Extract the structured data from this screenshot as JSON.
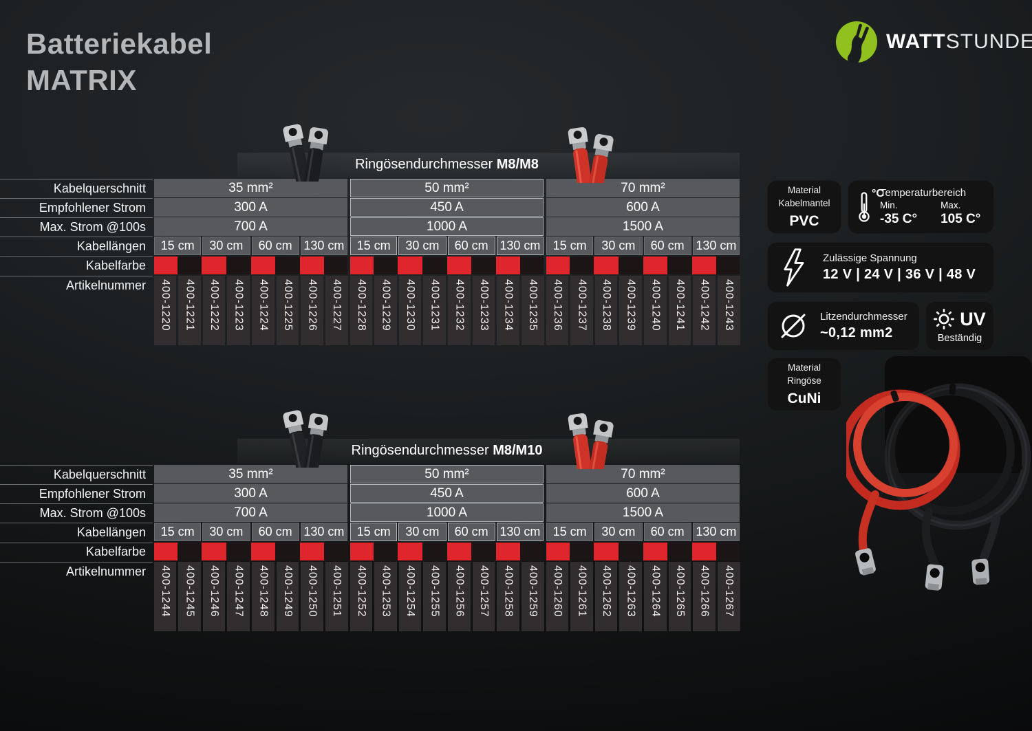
{
  "title": {
    "line1": "Batteriekabel",
    "line2": "MATRIX"
  },
  "brand": {
    "bold": "WATT",
    "light": "STUNDE",
    "logo_green": "#90c11f"
  },
  "row_labels": [
    "Kabelquerschnitt",
    "Empfohlener Strom",
    "Max. Strom @100s",
    "Kabellängen",
    "Kabelfarbe",
    "Artikelnummer"
  ],
  "swatch_cycle": [
    "#df262c",
    "#1b1516"
  ],
  "tables": [
    {
      "header_prefix": "Ringösendurchmesser ",
      "header_bold": "M8/M8",
      "groups": [
        {
          "cross_section": "35 mm²",
          "recommended_current": "300 A",
          "max_current": "700 A",
          "lengths": [
            "15 cm",
            "30 cm",
            "60 cm",
            "130 cm"
          ]
        },
        {
          "cross_section": "50 mm²",
          "recommended_current": "450 A",
          "max_current": "1000 A",
          "lengths": [
            "15 cm",
            "30 cm",
            "60 cm",
            "130 cm"
          ]
        },
        {
          "cross_section": "70 mm²",
          "recommended_current": "600 A",
          "max_current": "1500 A",
          "lengths": [
            "15 cm",
            "30 cm",
            "60 cm",
            "130 cm"
          ]
        }
      ],
      "articles": [
        "400-1220",
        "400-1221",
        "400-1222",
        "400-1223",
        "400-1224",
        "400-1225",
        "400-1226",
        "400-1227",
        "400-1228",
        "400-1229",
        "400-1230",
        "400-1231",
        "400-1232",
        "400-1233",
        "400-1234",
        "400-1235",
        "400-1236",
        "400-1237",
        "400-1238",
        "400-1239",
        "400-1240",
        "400-1241",
        "400-1242",
        "400-1243"
      ]
    },
    {
      "header_prefix": "Ringösendurchmesser ",
      "header_bold": "M8/M10",
      "groups": [
        {
          "cross_section": "35 mm²",
          "recommended_current": "300 A",
          "max_current": "700 A",
          "lengths": [
            "15 cm",
            "30 cm",
            "60 cm",
            "130 cm"
          ]
        },
        {
          "cross_section": "50 mm²",
          "recommended_current": "450 A",
          "max_current": "1000 A",
          "lengths": [
            "15 cm",
            "30 cm",
            "60 cm",
            "130 cm"
          ]
        },
        {
          "cross_section": "70 mm²",
          "recommended_current": "600 A",
          "max_current": "1500 A",
          "lengths": [
            "15 cm",
            "30 cm",
            "60 cm",
            "130 cm"
          ]
        }
      ],
      "articles": [
        "400-1244",
        "400-1245",
        "400-1246",
        "400-1247",
        "400-1248",
        "400-1249",
        "400-1250",
        "400-1251",
        "400-1252",
        "400-1253",
        "400-1254",
        "400-1255",
        "400-1256",
        "400-1257",
        "400-1258",
        "400-1259",
        "400-1260",
        "400-1261",
        "400-1262",
        "400-1263",
        "400-1264",
        "400-1265",
        "400-1266",
        "400-1267"
      ]
    }
  ],
  "specs": {
    "jacket": {
      "line1": "Material",
      "line2": "Kabelmantel",
      "value": "PVC"
    },
    "temperature": {
      "unit": "°C",
      "title": "Temperaturbereich",
      "min_label": "Min.",
      "min_value": "-35 C°",
      "max_label": "Max.",
      "max_value": "105 C°"
    },
    "voltage": {
      "label": "Zulässige Spannung",
      "value": "12 V | 24 V | 36 V | 48 V"
    },
    "strand": {
      "label": "Litzendurchmesser",
      "value": "~0,12 mm2"
    },
    "uv": {
      "value": "UV",
      "label": "Beständig"
    },
    "ring": {
      "line1": "Material",
      "line2": "Ringöse",
      "value": "CuNi"
    }
  }
}
